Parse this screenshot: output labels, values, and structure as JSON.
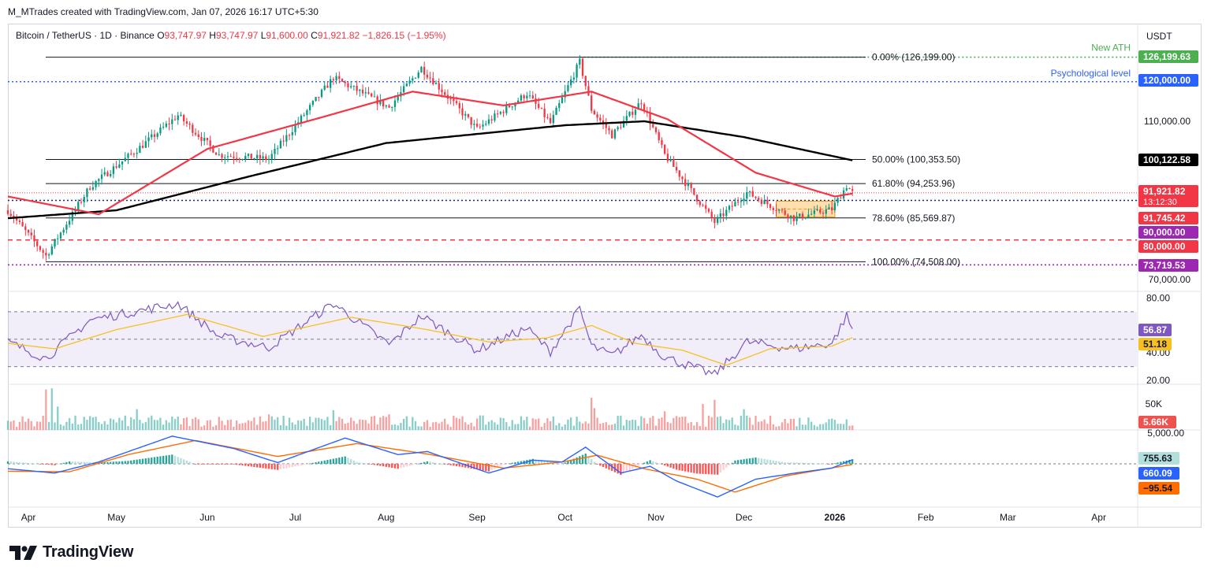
{
  "header": {
    "attribution": "M_MTrades created with TradingView.com, Jan 07, 2026 16:17 UTC+5:30"
  },
  "legend": {
    "symbol": "Bitcoin / TetherUS · 1D · Binance",
    "o_label": "O",
    "o_val": "93,747.97",
    "h_label": "H",
    "h_val": "93,747.97",
    "l_label": "L",
    "l_val": "91,600.00",
    "c_label": "C",
    "c_val": "91,921.82",
    "change": "−1,826.15 (−1.95%)"
  },
  "currency": "USDT",
  "logo_text": "TradingView",
  "colors": {
    "up": "#089981",
    "down": "#f23645",
    "sma50": "#f23645",
    "sma200": "#000000",
    "rsi": "#7e57c2",
    "rsi_ma": "#f7c01f",
    "macd": "#2962ff",
    "signal": "#ff6d00",
    "blue_level": "#2962ff",
    "purple_level": "#9c27b0",
    "green_ath": "#4caf50"
  },
  "chart_data": {
    "type": "candlestick",
    "title": "Bitcoin / TetherUS · 1D · Binance",
    "x_tick_labels": [
      "Apr",
      "May",
      "Jun",
      "Jul",
      "Aug",
      "Sep",
      "Oct",
      "Nov",
      "Dec",
      "2026",
      "Feb",
      "Mar",
      "Apr"
    ],
    "y_tick_labels": [
      "110,000.00",
      "70,000.00"
    ],
    "price_anchors": [
      {
        "date": "2025-03-25",
        "close": 87500
      },
      {
        "date": "2025-04-07",
        "close": 76000
      },
      {
        "date": "2025-04-22",
        "close": 93500
      },
      {
        "date": "2025-05-10",
        "close": 104000
      },
      {
        "date": "2025-05-22",
        "close": 111500
      },
      {
        "date": "2025-06-05",
        "close": 101500
      },
      {
        "date": "2025-06-22",
        "close": 100500
      },
      {
        "date": "2025-07-14",
        "close": 121000
      },
      {
        "date": "2025-08-02",
        "close": 113500
      },
      {
        "date": "2025-08-13",
        "close": 123500
      },
      {
        "date": "2025-09-01",
        "close": 108000
      },
      {
        "date": "2025-09-18",
        "close": 117000
      },
      {
        "date": "2025-09-26",
        "close": 109500
      },
      {
        "date": "2025-10-06",
        "close": 125000
      },
      {
        "date": "2025-10-10",
        "close": 113000
      },
      {
        "date": "2025-10-17",
        "close": 106500
      },
      {
        "date": "2025-10-27",
        "close": 115000
      },
      {
        "date": "2025-11-04",
        "close": 101500
      },
      {
        "date": "2025-11-21",
        "close": 84500
      },
      {
        "date": "2025-12-02",
        "close": 92000
      },
      {
        "date": "2025-12-18",
        "close": 85500
      },
      {
        "date": "2025-12-31",
        "close": 87800
      },
      {
        "date": "2026-01-05",
        "close": 93700
      },
      {
        "date": "2026-01-07",
        "close": 91921.82
      }
    ],
    "sma50_anchors": [
      {
        "date": "2025-03-25",
        "value": 91000
      },
      {
        "date": "2025-04-25",
        "value": 86500
      },
      {
        "date": "2025-06-01",
        "value": 103000
      },
      {
        "date": "2025-07-10",
        "value": 111000
      },
      {
        "date": "2025-08-10",
        "value": 117500
      },
      {
        "date": "2025-09-10",
        "value": 114000
      },
      {
        "date": "2025-10-10",
        "value": 117500
      },
      {
        "date": "2025-11-05",
        "value": 110500
      },
      {
        "date": "2025-12-05",
        "value": 97000
      },
      {
        "date": "2026-01-01",
        "value": 91000
      },
      {
        "date": "2026-01-07",
        "value": 91745.42
      }
    ],
    "sma200_anchors": [
      {
        "date": "2025-03-25",
        "value": 85500
      },
      {
        "date": "2025-05-01",
        "value": 87500
      },
      {
        "date": "2025-06-15",
        "value": 96000
      },
      {
        "date": "2025-08-01",
        "value": 104500
      },
      {
        "date": "2025-10-01",
        "value": 109000
      },
      {
        "date": "2025-10-28",
        "value": 110000
      },
      {
        "date": "2025-12-01",
        "value": 106000
      },
      {
        "date": "2026-01-07",
        "value": 100122.58
      }
    ],
    "fibonacci": [
      {
        "label": "0.00% (126,199.00)",
        "price": 126199
      },
      {
        "label": "50.00% (100,353.50)",
        "price": 100353.5
      },
      {
        "label": "61.80% (94,253.96)",
        "price": 94253.96
      },
      {
        "label": "78.60% (85,569.87)",
        "price": 85569.87
      },
      {
        "label": "100.00% (74,508.00)",
        "price": 74508
      }
    ],
    "annotations": [
      {
        "text": "New ATH",
        "price": 126199.63
      },
      {
        "text": "Psychological level",
        "price": 120000
      }
    ],
    "price_badges": [
      {
        "text": "126,199.63",
        "price": 126199.63,
        "color": "#4caf50",
        "fg": "#ffffff"
      },
      {
        "text": "120,000.00",
        "price": 120000,
        "color": "#2962ff",
        "fg": "#ffffff"
      },
      {
        "text": "100,122.58",
        "price": 100122.58,
        "color": "#000000",
        "fg": "#ffffff"
      },
      {
        "text": "91,921.82",
        "sub": "13:12:30",
        "price": 91921.82,
        "color": "#f23645",
        "fg": "#ffffff"
      },
      {
        "text": "91,745.42",
        "price": 91745.42,
        "color": "#f23645",
        "fg": "#ffffff"
      },
      {
        "text": "90,000.00",
        "price": 90000,
        "color": "#9c27b0",
        "fg": "#ffffff"
      },
      {
        "text": "80,000.00",
        "price": 80000,
        "color": "#f23645",
        "fg": "#ffffff"
      },
      {
        "text": "73,719.53",
        "price": 73719.53,
        "color": "#9c27b0",
        "fg": "#ffffff"
      }
    ],
    "consolidation_box": {
      "from": "2025-12-12",
      "to": "2026-01-01",
      "low": 85800,
      "high": 89800
    },
    "rsi": {
      "y_tick_labels": [
        "80.00",
        "40.00",
        "20.00"
      ],
      "overbought": 70,
      "mid": 50,
      "oversold": 30,
      "rsi_value": "56.87",
      "ma_value": "51.18",
      "anchors": [
        {
          "date": "2025-03-25",
          "value": 48
        },
        {
          "date": "2025-04-07",
          "value": 36
        },
        {
          "date": "2025-04-22",
          "value": 64
        },
        {
          "date": "2025-05-22",
          "value": 76
        },
        {
          "date": "2025-06-05",
          "value": 52
        },
        {
          "date": "2025-06-22",
          "value": 44
        },
        {
          "date": "2025-07-14",
          "value": 76
        },
        {
          "date": "2025-08-02",
          "value": 46
        },
        {
          "date": "2025-08-13",
          "value": 67
        },
        {
          "date": "2025-09-01",
          "value": 42
        },
        {
          "date": "2025-09-18",
          "value": 58
        },
        {
          "date": "2025-09-26",
          "value": 41
        },
        {
          "date": "2025-10-06",
          "value": 72
        },
        {
          "date": "2025-10-10",
          "value": 45
        },
        {
          "date": "2025-10-17",
          "value": 38
        },
        {
          "date": "2025-10-27",
          "value": 53
        },
        {
          "date": "2025-11-04",
          "value": 37
        },
        {
          "date": "2025-11-21",
          "value": 24
        },
        {
          "date": "2025-12-02",
          "value": 48
        },
        {
          "date": "2025-12-18",
          "value": 43
        },
        {
          "date": "2025-12-31",
          "value": 47
        },
        {
          "date": "2026-01-05",
          "value": 67
        },
        {
          "date": "2026-01-07",
          "value": 56.87
        }
      ],
      "ma_anchors": [
        {
          "date": "2025-03-25",
          "value": 47
        },
        {
          "date": "2025-04-10",
          "value": 43
        },
        {
          "date": "2025-05-01",
          "value": 57
        },
        {
          "date": "2025-05-25",
          "value": 68
        },
        {
          "date": "2025-06-20",
          "value": 52
        },
        {
          "date": "2025-07-20",
          "value": 66
        },
        {
          "date": "2025-08-15",
          "value": 57
        },
        {
          "date": "2025-09-05",
          "value": 48
        },
        {
          "date": "2025-09-25",
          "value": 51
        },
        {
          "date": "2025-10-10",
          "value": 60
        },
        {
          "date": "2025-10-25",
          "value": 47
        },
        {
          "date": "2025-11-10",
          "value": 42
        },
        {
          "date": "2025-11-25",
          "value": 31
        },
        {
          "date": "2025-12-10",
          "value": 43
        },
        {
          "date": "2025-12-31",
          "value": 45
        },
        {
          "date": "2026-01-07",
          "value": 51.18
        }
      ]
    },
    "volume": {
      "y_tick_labels": [
        "50K"
      ],
      "last_value": "5.66K",
      "spikes": [
        {
          "date": "2025-04-07",
          "value": 78000
        },
        {
          "date": "2025-04-09",
          "value": 80000
        },
        {
          "date": "2025-04-11",
          "value": 45000
        },
        {
          "date": "2025-05-08",
          "value": 40000
        },
        {
          "date": "2025-06-22",
          "value": 30000
        },
        {
          "date": "2025-07-14",
          "value": 38000
        },
        {
          "date": "2025-08-02",
          "value": 30000
        },
        {
          "date": "2025-10-10",
          "value": 62000
        },
        {
          "date": "2025-10-11",
          "value": 42000
        },
        {
          "date": "2025-11-04",
          "value": 36000
        },
        {
          "date": "2025-11-17",
          "value": 50000
        },
        {
          "date": "2025-11-21",
          "value": 58000
        },
        {
          "date": "2025-12-01",
          "value": 40000
        }
      ]
    },
    "macd": {
      "y_tick_labels": [
        "5,000.00"
      ],
      "histogram_value": "755.63",
      "macd_value": "660.09",
      "signal_value": "−95.54",
      "macd_anchors": [
        {
          "date": "2025-03-25",
          "value": -800
        },
        {
          "date": "2025-04-10",
          "value": -1500
        },
        {
          "date": "2025-04-25",
          "value": 300
        },
        {
          "date": "2025-05-20",
          "value": 4500
        },
        {
          "date": "2025-06-10",
          "value": 2500
        },
        {
          "date": "2025-06-25",
          "value": 200
        },
        {
          "date": "2025-07-18",
          "value": 4200
        },
        {
          "date": "2025-08-05",
          "value": 1500
        },
        {
          "date": "2025-08-15",
          "value": 2000
        },
        {
          "date": "2025-09-05",
          "value": -1500
        },
        {
          "date": "2025-09-20",
          "value": 600
        },
        {
          "date": "2025-09-30",
          "value": 300
        },
        {
          "date": "2025-10-08",
          "value": 2700
        },
        {
          "date": "2025-10-20",
          "value": -1500
        },
        {
          "date": "2025-10-30",
          "value": -400
        },
        {
          "date": "2025-11-08",
          "value": -2800
        },
        {
          "date": "2025-11-22",
          "value": -5400
        },
        {
          "date": "2025-12-05",
          "value": -2500
        },
        {
          "date": "2025-12-20",
          "value": -1400
        },
        {
          "date": "2025-12-31",
          "value": -700
        },
        {
          "date": "2026-01-07",
          "value": 660.09
        }
      ],
      "signal_anchors": [
        {
          "date": "2025-03-25",
          "value": -1200
        },
        {
          "date": "2025-04-15",
          "value": -1300
        },
        {
          "date": "2025-05-05",
          "value": 1500
        },
        {
          "date": "2025-05-28",
          "value": 3800
        },
        {
          "date": "2025-06-25",
          "value": 1200
        },
        {
          "date": "2025-07-22",
          "value": 3300
        },
        {
          "date": "2025-08-15",
          "value": 1600
        },
        {
          "date": "2025-09-10",
          "value": -700
        },
        {
          "date": "2025-09-30",
          "value": 300
        },
        {
          "date": "2025-10-12",
          "value": 1400
        },
        {
          "date": "2025-10-28",
          "value": -800
        },
        {
          "date": "2025-11-15",
          "value": -2500
        },
        {
          "date": "2025-11-28",
          "value": -4600
        },
        {
          "date": "2025-12-15",
          "value": -2000
        },
        {
          "date": "2026-01-07",
          "value": -95.54
        }
      ]
    }
  }
}
